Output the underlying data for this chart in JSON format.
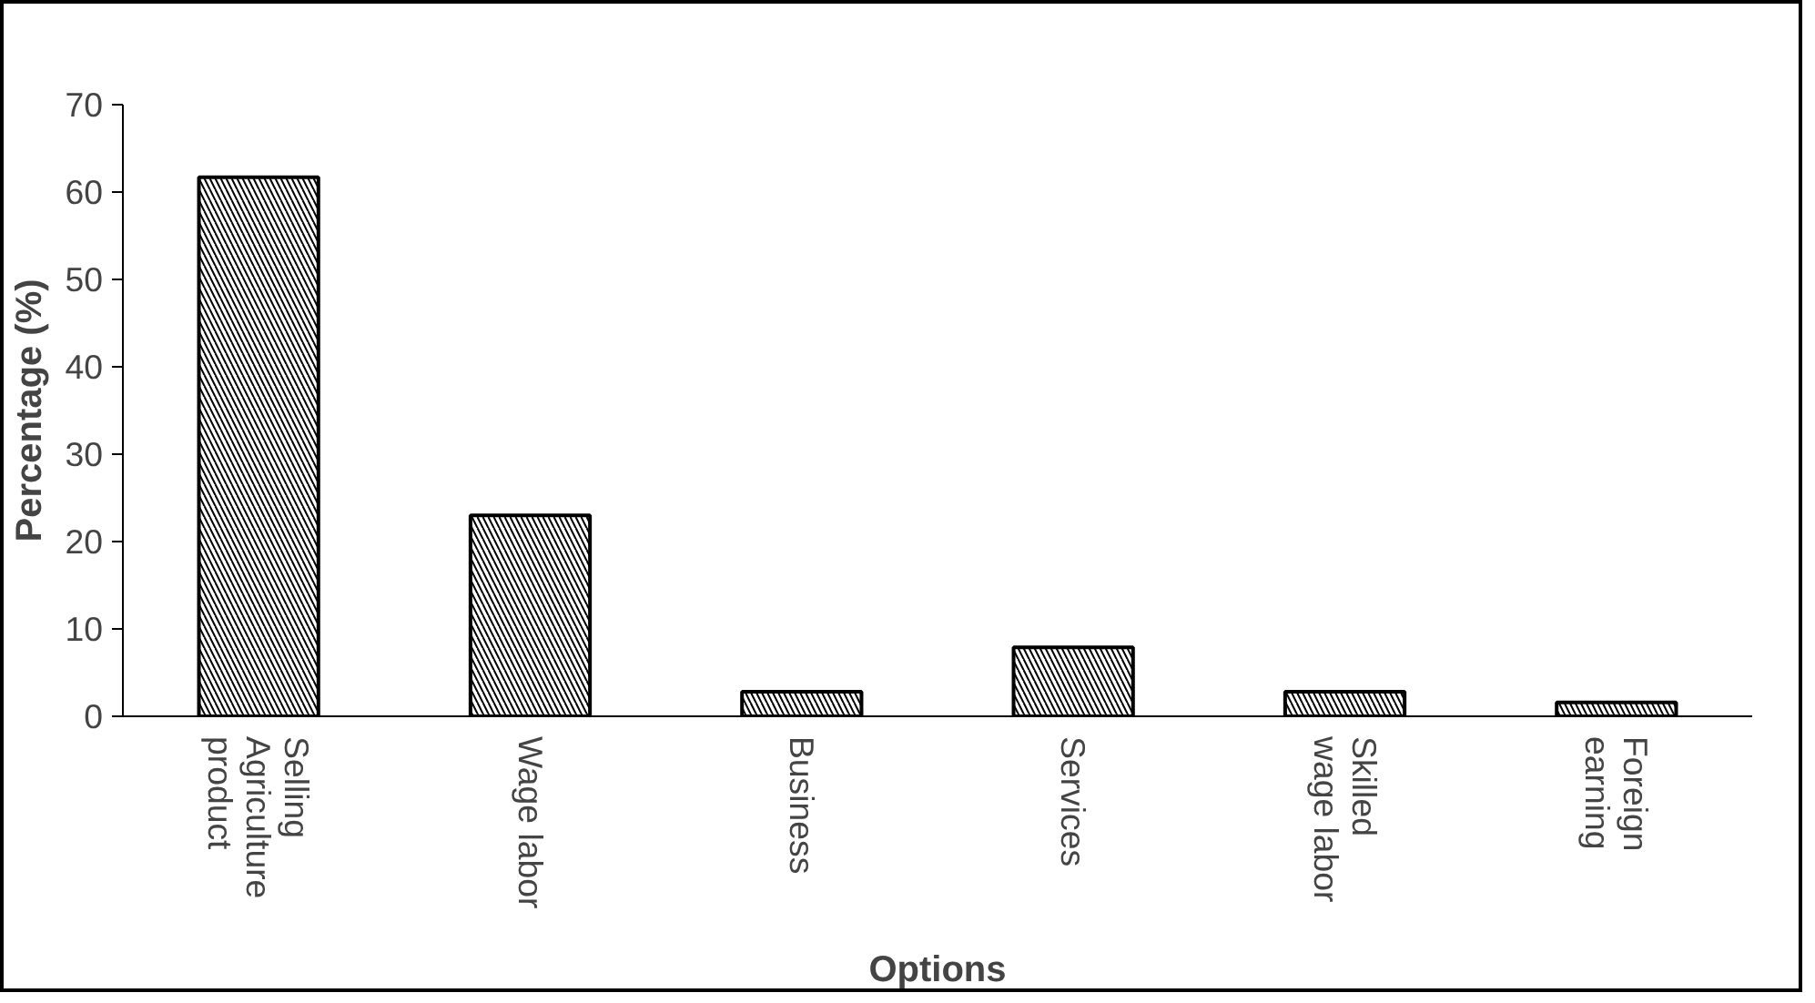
{
  "chart_data": {
    "type": "bar",
    "xlabel": "Options",
    "ylabel": "Percentage (%)",
    "categories": [
      "Selling\nAgriculture\nproduct",
      "Wage labor",
      "Business",
      "Services",
      "Skilled\nwage labor",
      "Foreign\nearning"
    ],
    "values": [
      61.7,
      23.0,
      2.8,
      7.9,
      2.8,
      1.6
    ],
    "color": "#ffffff",
    "ylim": [
      0,
      70
    ],
    "yticks": [
      0,
      10,
      20,
      30,
      40,
      50,
      60,
      70
    ],
    "grid": false
  }
}
